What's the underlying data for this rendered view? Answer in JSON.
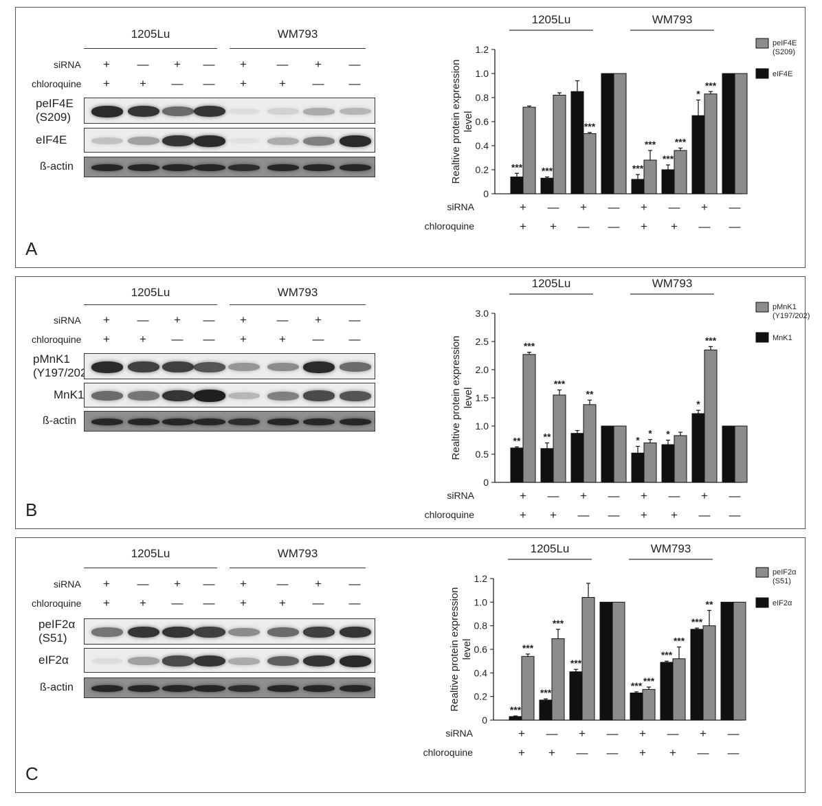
{
  "blot_groups": [
    "1205Lu",
    "WM793"
  ],
  "condition_labels": {
    "sirna": "siRNA",
    "chloroquine": "chloroquine"
  },
  "sirna_signs": [
    "+",
    "—",
    "+",
    "—",
    "+",
    "—",
    "+",
    "—"
  ],
  "chloroquine_signs": [
    "+",
    "+",
    "—",
    "—",
    "+",
    "+",
    "—",
    "—"
  ],
  "colors": {
    "phospho": "#8c8c8c",
    "total": "#111111",
    "blot_bg": "#ededed",
    "band": "#1a1a1a"
  },
  "panels": [
    {
      "letter": "A",
      "blot_rows": [
        {
          "label": "peIF4E\n(S209)",
          "intensities": [
            0.9,
            0.85,
            0.6,
            0.85,
            0.08,
            0.12,
            0.3,
            0.25
          ]
        },
        {
          "label": "eIF4E",
          "intensities": [
            0.2,
            0.35,
            0.85,
            0.9,
            0.05,
            0.3,
            0.5,
            0.9
          ]
        },
        {
          "label": "ß-actin",
          "intensities": [
            0.85,
            0.85,
            0.85,
            0.85,
            0.8,
            0.85,
            0.85,
            0.85
          ]
        }
      ],
      "chart_data": {
        "type": "bar",
        "ylabel": "Realtive protein expression level",
        "ylim": [
          0,
          1.2
        ],
        "yticks": [
          0,
          0.2,
          0.4,
          0.6,
          0.8,
          1.0,
          1.2
        ],
        "groups": [
          "1205Lu",
          "WM793"
        ],
        "legend": [
          "peIF4E\n(S209)",
          "eIF4E"
        ],
        "series": [
          {
            "name": "eIF4E",
            "values": [
              0.14,
              0.13,
              0.85,
              1.0,
              0.12,
              0.2,
              0.65,
              1.0
            ],
            "errors": [
              0.03,
              0.01,
              0.09,
              0,
              0.04,
              0.04,
              0.13,
              0
            ],
            "sig": [
              "***",
              "***",
              "",
              "",
              "***",
              "***",
              "*",
              ""
            ]
          },
          {
            "name": "peIF4E\n(S209)",
            "values": [
              0.72,
              0.82,
              0.5,
              1.0,
              0.28,
              0.36,
              0.83,
              1.0
            ],
            "errors": [
              0.01,
              0.02,
              0.01,
              0,
              0.08,
              0.02,
              0.02,
              0
            ],
            "sig": [
              "",
              "",
              "***",
              "",
              "***",
              "***",
              "***",
              ""
            ]
          }
        ]
      }
    },
    {
      "letter": "B",
      "blot_rows": [
        {
          "label": "pMnK1\n(Y197/202)",
          "intensities": [
            0.9,
            0.8,
            0.8,
            0.7,
            0.4,
            0.45,
            0.9,
            0.6
          ]
        },
        {
          "label": "MnK1",
          "intensities": [
            0.6,
            0.55,
            0.85,
            0.95,
            0.25,
            0.5,
            0.75,
            0.7
          ]
        },
        {
          "label": "ß-actin",
          "intensities": [
            0.85,
            0.85,
            0.85,
            0.85,
            0.8,
            0.85,
            0.85,
            0.85
          ]
        }
      ],
      "chart_data": {
        "type": "bar",
        "ylabel": "Realtive protein expression level",
        "ylim": [
          0,
          3.0
        ],
        "yticks": [
          0,
          0.5,
          1.0,
          1.5,
          2.0,
          2.5,
          3.0
        ],
        "groups": [
          "1205Lu",
          "WM793"
        ],
        "legend": [
          "pMnK1\n(Y197/202)",
          "MnK1"
        ],
        "series": [
          {
            "name": "MnK1",
            "values": [
              0.61,
              0.6,
              0.87,
              1.0,
              0.52,
              0.67,
              1.22,
              1.0
            ],
            "errors": [
              0.02,
              0.1,
              0.05,
              0,
              0.12,
              0.08,
              0.06,
              0
            ],
            "sig": [
              "**",
              "**",
              "",
              "",
              "*",
              "*",
              "*",
              ""
            ]
          },
          {
            "name": "pMnK1\n(Y197/202)",
            "values": [
              2.27,
              1.55,
              1.38,
              1.0,
              0.7,
              0.83,
              2.35,
              1.0
            ],
            "errors": [
              0.04,
              0.09,
              0.08,
              0,
              0.06,
              0.06,
              0.06,
              0
            ],
            "sig": [
              "***",
              "***",
              "**",
              "",
              "*",
              "",
              "***",
              ""
            ]
          }
        ]
      }
    },
    {
      "letter": "C",
      "blot_rows": [
        {
          "label": "peIF2α\n(S51)",
          "intensities": [
            0.55,
            0.85,
            0.85,
            0.8,
            0.45,
            0.6,
            0.8,
            0.85
          ]
        },
        {
          "label": "eIF2α",
          "intensities": [
            0.08,
            0.35,
            0.75,
            0.85,
            0.3,
            0.65,
            0.85,
            0.9
          ]
        },
        {
          "label": "ß-actin",
          "intensities": [
            0.85,
            0.85,
            0.85,
            0.85,
            0.8,
            0.85,
            0.85,
            0.85
          ]
        }
      ],
      "chart_data": {
        "type": "bar",
        "ylabel": "Realtive protein expression level",
        "ylim": [
          0,
          1.2
        ],
        "yticks": [
          0,
          0.2,
          0.4,
          0.6,
          0.8,
          1.0,
          1.2
        ],
        "groups": [
          "1205Lu",
          "WM793"
        ],
        "legend": [
          "peIF2α\n(S51)",
          "eIF2α"
        ],
        "series": [
          {
            "name": "eIF2α",
            "values": [
              0.03,
              0.17,
              0.41,
              1.0,
              0.23,
              0.49,
              0.77,
              1.0
            ],
            "errors": [
              0.005,
              0.01,
              0.02,
              0,
              0.01,
              0.01,
              0.01,
              0
            ],
            "sig": [
              "***",
              "***",
              "***",
              "",
              "***",
              "***",
              "***",
              ""
            ]
          },
          {
            "name": "peIF2α\n(S51)",
            "values": [
              0.54,
              0.69,
              1.04,
              1.0,
              0.26,
              0.52,
              0.8,
              1.0
            ],
            "errors": [
              0.02,
              0.08,
              0.12,
              0,
              0.02,
              0.1,
              0.13,
              0
            ],
            "sig": [
              "***",
              "***",
              "",
              "",
              "***",
              "***",
              "**",
              ""
            ]
          }
        ]
      }
    }
  ]
}
